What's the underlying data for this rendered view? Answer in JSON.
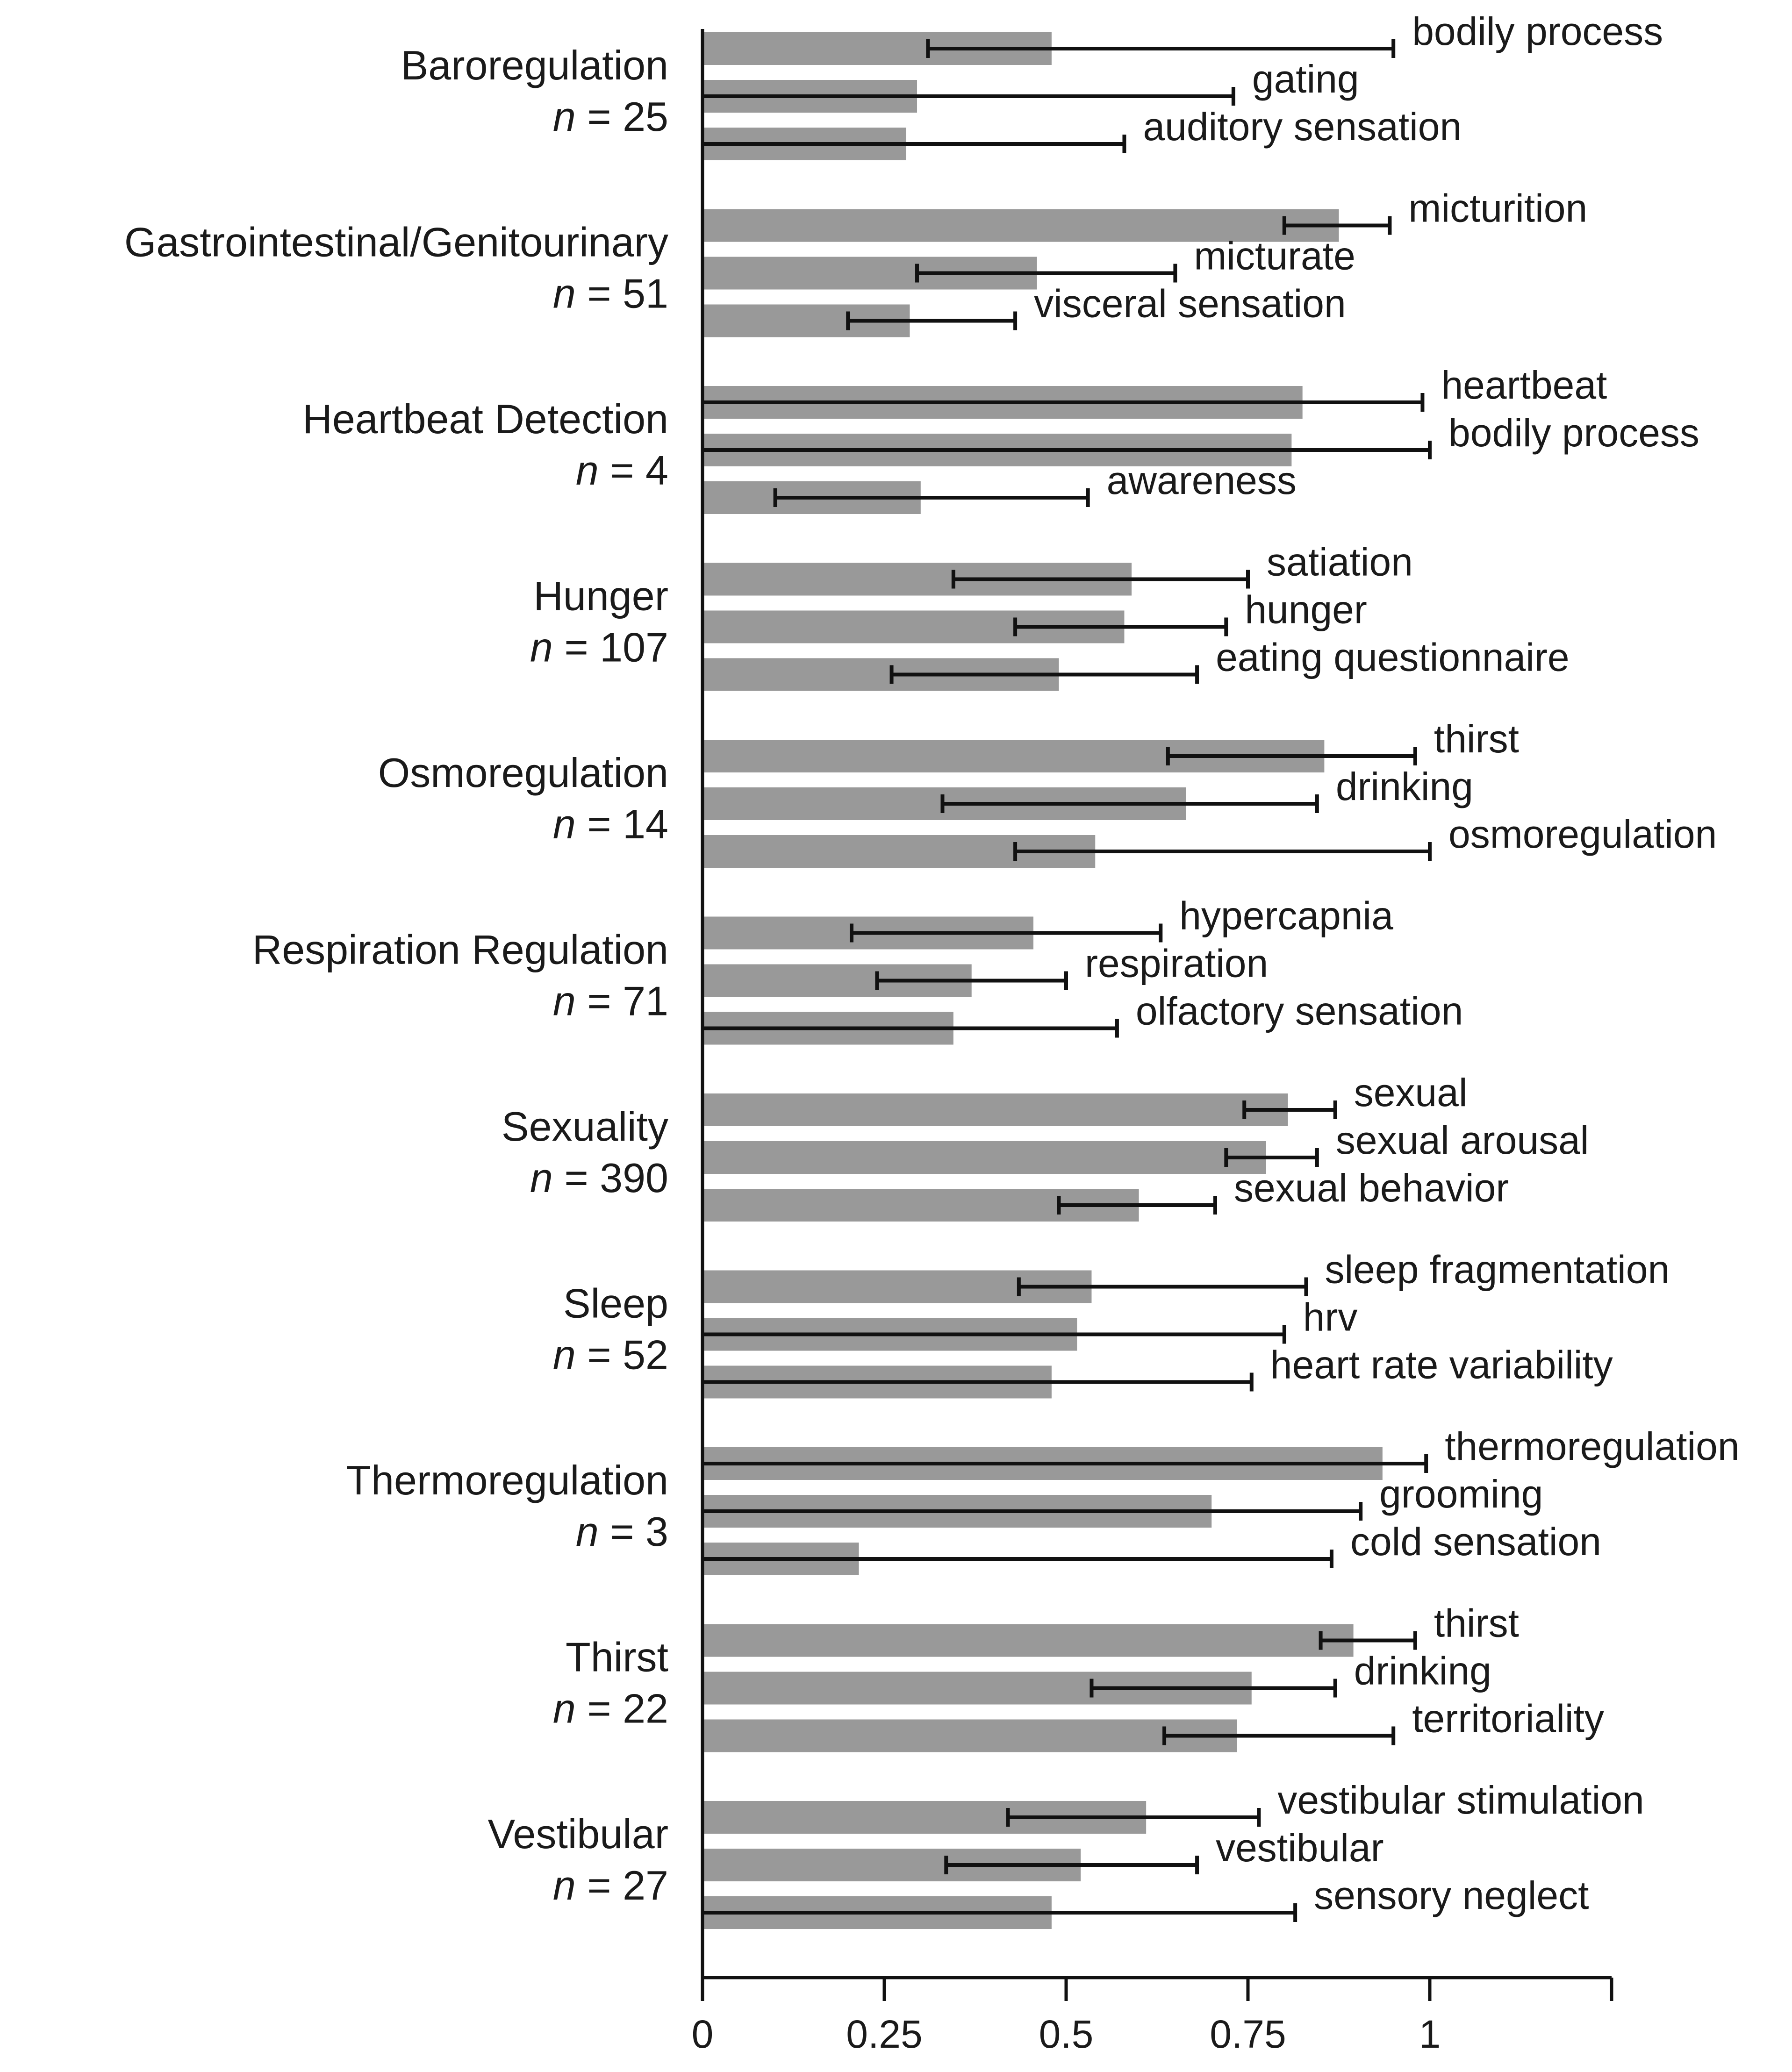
{
  "chart_data": {
    "type": "bar",
    "orientation": "horizontal",
    "xlim": [
      0,
      1.25
    ],
    "xticks": [
      {
        "value": 0,
        "label": "0"
      },
      {
        "value": 0.25,
        "label": "0.25"
      },
      {
        "value": 0.5,
        "label": "0.5"
      },
      {
        "value": 0.75,
        "label": "0.75"
      },
      {
        "value": 1,
        "label": "1"
      },
      {
        "value": 1.25,
        "label": ""
      }
    ],
    "groups": [
      {
        "category": "Baroregulation",
        "n_prefix": "n",
        "n_value": " = 25",
        "terms": [
          {
            "label": "bodily process",
            "value": 0.48,
            "err_low": 0.31,
            "err_high": 0.95
          },
          {
            "label": "gating",
            "value": 0.295,
            "err_low": 0.0,
            "err_high": 0.73
          },
          {
            "label": "auditory sensation",
            "value": 0.28,
            "err_low": 0.0,
            "err_high": 0.58
          }
        ]
      },
      {
        "category": "Gastrointestinal/Genitourinary",
        "n_prefix": "n",
        "n_value": " = 51",
        "terms": [
          {
            "label": "micturition",
            "value": 0.875,
            "err_low": 0.8,
            "err_high": 0.945
          },
          {
            "label": "micturate",
            "value": 0.46,
            "err_low": 0.295,
            "err_high": 0.65
          },
          {
            "label": "visceral sensation",
            "value": 0.285,
            "err_low": 0.2,
            "err_high": 0.43
          }
        ]
      },
      {
        "category": "Heartbeat Detection",
        "n_prefix": "n",
        "n_value": " = 4",
        "terms": [
          {
            "label": "heartbeat",
            "value": 0.825,
            "err_low": 0.0,
            "err_high": 0.99
          },
          {
            "label": "bodily process",
            "value": 0.81,
            "err_low": 0.0,
            "err_high": 1.0
          },
          {
            "label": "awareness",
            "value": 0.3,
            "err_low": 0.1,
            "err_high": 0.53
          }
        ]
      },
      {
        "category": "Hunger",
        "n_prefix": "n",
        "n_value": " = 107",
        "terms": [
          {
            "label": "satiation",
            "value": 0.59,
            "err_low": 0.345,
            "err_high": 0.75
          },
          {
            "label": "hunger",
            "value": 0.58,
            "err_low": 0.43,
            "err_high": 0.72
          },
          {
            "label": "eating questionnaire",
            "value": 0.49,
            "err_low": 0.26,
            "err_high": 0.68
          }
        ]
      },
      {
        "category": "Osmoregulation",
        "n_prefix": "n",
        "n_value": " = 14",
        "terms": [
          {
            "label": "thirst",
            "value": 0.855,
            "err_low": 0.64,
            "err_high": 0.98
          },
          {
            "label": "drinking",
            "value": 0.665,
            "err_low": 0.33,
            "err_high": 0.845
          },
          {
            "label": "osmoregulation",
            "value": 0.54,
            "err_low": 0.43,
            "err_high": 1.0
          }
        ]
      },
      {
        "category": "Respiration Regulation",
        "n_prefix": "n",
        "n_value": " = 71",
        "terms": [
          {
            "label": "hypercapnia",
            "value": 0.455,
            "err_low": 0.205,
            "err_high": 0.63
          },
          {
            "label": "respiration",
            "value": 0.37,
            "err_low": 0.24,
            "err_high": 0.5
          },
          {
            "label": "olfactory sensation",
            "value": 0.345,
            "err_low": 0.0,
            "err_high": 0.57
          }
        ]
      },
      {
        "category": "Sexuality",
        "n_prefix": "n",
        "n_value": " = 390",
        "terms": [
          {
            "label": "sexual",
            "value": 0.805,
            "err_low": 0.745,
            "err_high": 0.87
          },
          {
            "label": "sexual arousal",
            "value": 0.775,
            "err_low": 0.72,
            "err_high": 0.845
          },
          {
            "label": "sexual behavior",
            "value": 0.6,
            "err_low": 0.49,
            "err_high": 0.705
          }
        ]
      },
      {
        "category": "Sleep",
        "n_prefix": "n",
        "n_value": " = 52",
        "terms": [
          {
            "label": "sleep fragmentation",
            "value": 0.535,
            "err_low": 0.435,
            "err_high": 0.83
          },
          {
            "label": "hrv",
            "value": 0.515,
            "err_low": 0.0,
            "err_high": 0.8
          },
          {
            "label": "heart rate variability",
            "value": 0.48,
            "err_low": 0.0,
            "err_high": 0.755
          }
        ]
      },
      {
        "category": "Thermoregulation",
        "n_prefix": "n",
        "n_value": " = 3",
        "terms": [
          {
            "label": "thermoregulation",
            "value": 0.935,
            "err_low": 0.0,
            "err_high": 0.995
          },
          {
            "label": "grooming",
            "value": 0.7,
            "err_low": 0.0,
            "err_high": 0.905
          },
          {
            "label": "cold sensation",
            "value": 0.215,
            "err_low": 0.0,
            "err_high": 0.865
          }
        ]
      },
      {
        "category": "Thirst",
        "n_prefix": "n",
        "n_value": " = 22",
        "terms": [
          {
            "label": "thirst",
            "value": 0.895,
            "err_low": 0.85,
            "err_high": 0.98
          },
          {
            "label": "drinking",
            "value": 0.755,
            "err_low": 0.535,
            "err_high": 0.87
          },
          {
            "label": "territoriality",
            "value": 0.735,
            "err_low": 0.635,
            "err_high": 0.95
          }
        ]
      },
      {
        "category": "Vestibular",
        "n_prefix": "n",
        "n_value": " = 27",
        "terms": [
          {
            "label": "vestibular stimulation",
            "value": 0.61,
            "err_low": 0.42,
            "err_high": 0.765
          },
          {
            "label": "vestibular",
            "value": 0.52,
            "err_low": 0.335,
            "err_high": 0.68
          },
          {
            "label": "sensory neglect",
            "value": 0.48,
            "err_low": 0.0,
            "err_high": 0.815
          }
        ]
      }
    ]
  }
}
